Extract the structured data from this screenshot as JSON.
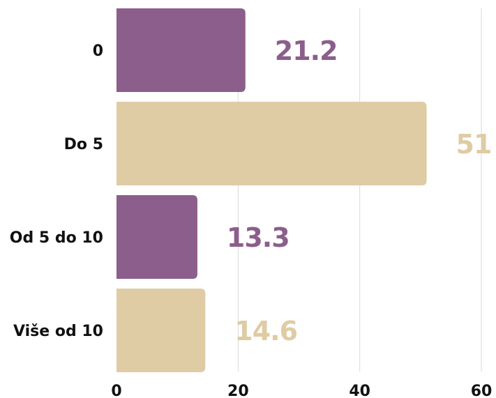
{
  "chart_data": {
    "type": "bar",
    "orientation": "horizontal",
    "categories": [
      "0",
      "Do 5",
      "Od 5 do 10",
      "Više od 10"
    ],
    "values": [
      21.2,
      51,
      13.3,
      14.6
    ],
    "value_labels": [
      "21.2",
      "51",
      "13.3",
      "14.6"
    ],
    "xlim": [
      0,
      60
    ],
    "x_ticks": [
      0,
      20,
      40,
      60
    ],
    "x_tick_labels": [
      "0",
      "20",
      "40",
      "60"
    ],
    "grid": true,
    "legend": "none",
    "bar_colors": [
      "#8b5e8b",
      "#dfcba4",
      "#8b5e8b",
      "#dfcba4"
    ]
  }
}
